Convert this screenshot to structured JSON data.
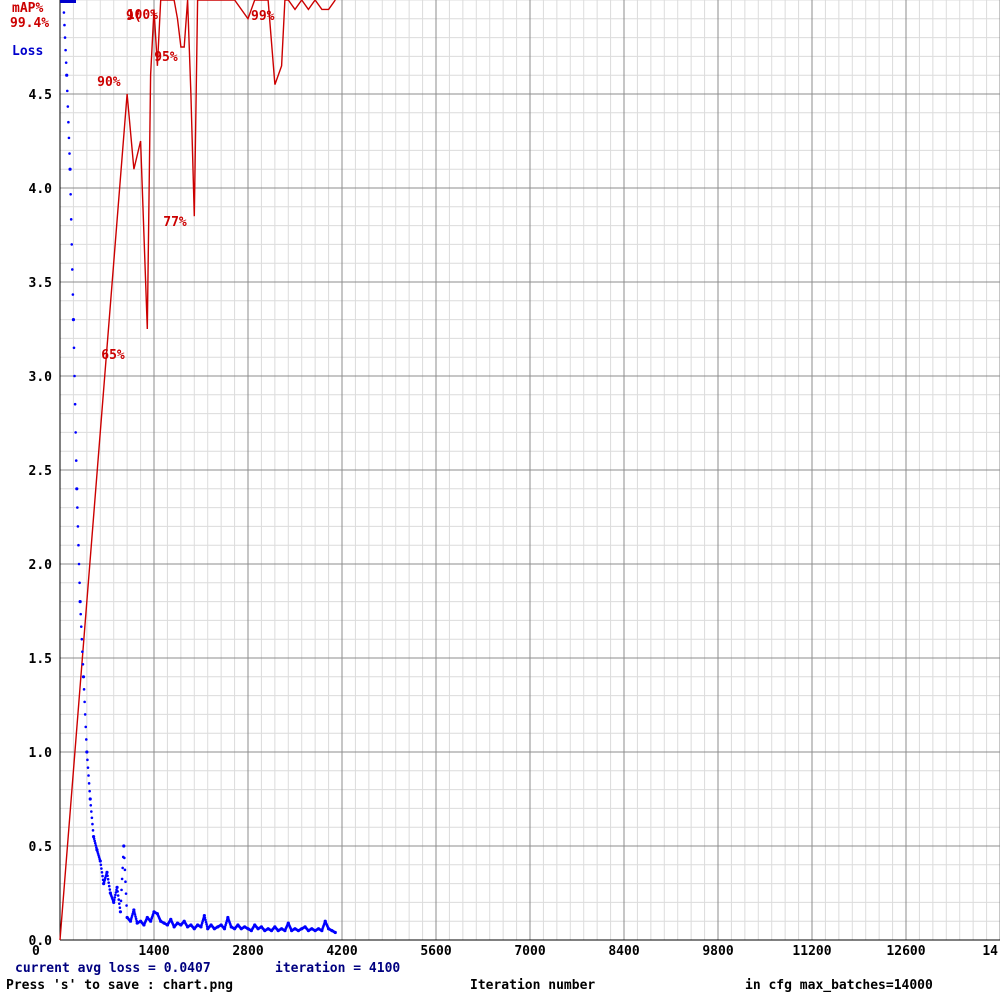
{
  "chart_data": {
    "type": "line",
    "xlabel": "Iteration number",
    "xlim": [
      0,
      14000
    ],
    "ylim": [
      0,
      5
    ],
    "x_ticks": [
      "0",
      "1400",
      "2800",
      "4200",
      "5600",
      "7000",
      "8400",
      "9800",
      "11200",
      "12600",
      "14"
    ],
    "y_ticks": [
      "0.0",
      "0.5",
      "1.0",
      "1.5",
      "2.0",
      "2.5",
      "3.0",
      "3.5",
      "4.0",
      "4.5"
    ],
    "legend": {
      "map_label": "mAP%",
      "map_value": "99.4%",
      "loss_label": "Loss",
      "placement": "top-left"
    },
    "series": [
      {
        "name": "Loss",
        "color": "#0000ff",
        "x": [
          50,
          100,
          150,
          200,
          250,
          300,
          350,
          400,
          450,
          500,
          550,
          600,
          650,
          700,
          750,
          800,
          850,
          900,
          950,
          1000,
          1050,
          1100,
          1150,
          1200,
          1250,
          1300,
          1350,
          1400,
          1450,
          1500,
          1550,
          1600,
          1650,
          1700,
          1750,
          1800,
          1850,
          1900,
          1950,
          2000,
          2050,
          2100,
          2150,
          2200,
          2250,
          2300,
          2350,
          2400,
          2450,
          2500,
          2550,
          2600,
          2650,
          2700,
          2750,
          2800,
          2850,
          2900,
          2950,
          3000,
          3050,
          3100,
          3150,
          3200,
          3250,
          3300,
          3350,
          3400,
          3450,
          3500,
          3550,
          3600,
          3650,
          3700,
          3750,
          3800,
          3850,
          3900,
          3950,
          4000,
          4050,
          4100
        ],
        "values": [
          5.0,
          4.6,
          4.1,
          3.3,
          2.4,
          1.8,
          1.4,
          1.0,
          0.75,
          0.55,
          0.48,
          0.42,
          0.3,
          0.36,
          0.25,
          0.2,
          0.28,
          0.15,
          0.5,
          0.12,
          0.1,
          0.16,
          0.09,
          0.1,
          0.08,
          0.12,
          0.1,
          0.15,
          0.14,
          0.1,
          0.09,
          0.08,
          0.11,
          0.07,
          0.09,
          0.08,
          0.1,
          0.07,
          0.08,
          0.06,
          0.08,
          0.07,
          0.13,
          0.06,
          0.08,
          0.06,
          0.07,
          0.08,
          0.06,
          0.12,
          0.07,
          0.06,
          0.08,
          0.06,
          0.07,
          0.06,
          0.05,
          0.08,
          0.06,
          0.07,
          0.05,
          0.06,
          0.05,
          0.07,
          0.05,
          0.06,
          0.05,
          0.09,
          0.05,
          0.06,
          0.05,
          0.06,
          0.07,
          0.05,
          0.06,
          0.05,
          0.06,
          0.05,
          0.1,
          0.06,
          0.05,
          0.04
        ]
      },
      {
        "name": "mAP%",
        "color": "#cc0000",
        "x": [
          0,
          1000,
          1100,
          1200,
          1300,
          1350,
          1400,
          1450,
          1500,
          1550,
          1600,
          1700,
          1750,
          1800,
          1850,
          1900,
          1950,
          2000,
          2050,
          2200,
          2400,
          2600,
          2800,
          2900,
          3000,
          3100,
          3200,
          3300,
          3350,
          3400,
          3500,
          3600,
          3700,
          3800,
          3900,
          4000,
          4100
        ],
        "values": [
          0,
          90,
          82,
          85,
          65,
          92,
          99,
          93,
          100,
          100,
          100,
          100,
          98,
          95,
          95,
          100,
          90,
          77,
          100,
          100,
          100,
          100,
          98,
          100,
          100,
          100,
          91,
          93,
          100,
          100,
          99,
          100,
          99,
          100,
          99,
          99,
          100
        ]
      }
    ],
    "annotations": [
      {
        "text": "90%",
        "x": 1000,
        "y": 90
      },
      {
        "text": "65%",
        "x": 1300,
        "y": 65
      },
      {
        "text": "9(",
        "x": 1400,
        "y": 99
      },
      {
        "text": "100%",
        "x": 1500,
        "y": 100
      },
      {
        "text": "95%",
        "x": 1850,
        "y": 95
      },
      {
        "text": "77%",
        "x": 2000,
        "y": 77
      },
      {
        "text": "99%",
        "x": 3500,
        "y": 99
      }
    ]
  },
  "footer": {
    "current_loss": "current avg loss = 0.0407",
    "iteration": "iteration = 4100",
    "save_hint": "Press 's' to save : chart.png",
    "x_axis_label": "Iteration number",
    "max_batches": "in cfg max_batches=14000"
  }
}
